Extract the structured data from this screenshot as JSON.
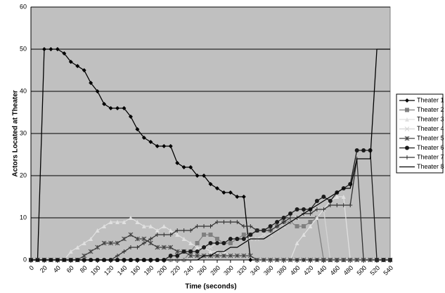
{
  "chart_data": {
    "type": "line",
    "xlabel": "Time (seconds)",
    "ylabel": "Actors Located at Theater",
    "x": [
      0,
      10,
      20,
      30,
      40,
      50,
      60,
      70,
      80,
      90,
      100,
      110,
      120,
      130,
      140,
      150,
      160,
      170,
      180,
      190,
      200,
      210,
      220,
      230,
      240,
      250,
      260,
      270,
      280,
      290,
      300,
      310,
      320,
      330,
      340,
      350,
      360,
      370,
      380,
      390,
      400,
      410,
      420,
      430,
      440,
      450,
      460,
      470,
      480,
      490,
      500,
      510,
      520,
      530,
      540
    ],
    "xlim": [
      0,
      540
    ],
    "xticks": [
      0,
      20,
      40,
      60,
      80,
      100,
      120,
      140,
      160,
      180,
      200,
      220,
      240,
      260,
      280,
      300,
      320,
      340,
      360,
      380,
      400,
      420,
      440,
      460,
      480,
      500,
      520,
      540
    ],
    "ylim": [
      0,
      60
    ],
    "yticks": [
      0,
      10,
      20,
      30,
      40,
      50,
      60
    ],
    "grid": true,
    "legend": "right",
    "series": [
      {
        "name": "Theater 1",
        "color": "#000000",
        "marker": "diamond",
        "values": [
          0,
          0,
          50,
          50,
          50,
          49,
          47,
          46,
          45,
          42,
          40,
          37,
          36,
          36,
          36,
          34,
          31,
          29,
          28,
          27,
          27,
          27,
          23,
          22,
          22,
          20,
          20,
          18,
          17,
          16,
          16,
          15,
          15,
          0,
          0,
          0,
          0,
          0,
          0,
          0,
          0,
          0,
          0,
          0,
          0,
          0,
          0,
          0,
          0,
          0,
          0,
          0,
          0,
          0,
          0
        ]
      },
      {
        "name": "Theater 2",
        "color": "#808080",
        "marker": "square",
        "values": [
          0,
          0,
          0,
          0,
          0,
          0,
          0,
          0,
          0,
          0,
          0,
          0,
          0,
          0,
          0,
          0,
          0,
          0,
          0,
          0,
          0,
          0,
          0,
          0,
          2,
          4,
          6,
          6,
          5,
          4,
          4,
          5,
          6,
          6,
          7,
          7,
          7,
          8,
          9,
          9,
          8,
          8,
          9,
          10,
          0,
          0,
          0,
          0,
          0,
          0,
          0,
          0,
          0,
          0,
          0
        ]
      },
      {
        "name": "Theater 3",
        "color": "#e0e0e0",
        "marker": "triangle",
        "values": [
          0,
          0,
          0,
          0,
          0,
          0,
          2,
          3,
          4,
          5,
          7,
          8,
          9,
          9,
          9,
          10,
          9,
          8,
          8,
          7,
          8,
          7,
          6,
          5,
          4,
          3,
          3,
          2,
          2,
          2,
          1,
          1,
          1,
          1,
          0,
          0,
          0,
          0,
          0,
          0,
          4,
          6,
          8,
          10,
          12,
          14,
          15,
          15,
          0,
          0,
          0,
          0,
          0,
          0,
          0
        ]
      },
      {
        "name": "Theater 4",
        "color": "#d4d4d4",
        "marker": "x",
        "values": [
          0,
          0,
          0,
          0,
          0,
          0,
          0,
          0,
          0,
          0,
          0,
          0,
          0,
          0,
          0,
          0,
          0,
          0,
          0,
          0,
          0,
          0,
          0,
          0,
          0,
          2,
          3,
          3,
          4,
          4,
          5,
          5,
          5,
          5,
          5,
          6,
          6,
          7,
          8,
          9,
          10,
          11,
          12,
          12,
          12,
          0,
          0,
          0,
          0,
          0,
          0,
          0,
          0,
          0,
          0
        ]
      },
      {
        "name": "Theater 5",
        "color": "#404040",
        "marker": "asterisk",
        "values": [
          0,
          0,
          0,
          0,
          0,
          0,
          0,
          0,
          1,
          2,
          3,
          4,
          4,
          4,
          5,
          6,
          5,
          5,
          4,
          3,
          3,
          3,
          2,
          2,
          1,
          1,
          1,
          1,
          1,
          1,
          1,
          1,
          1,
          1,
          0,
          0,
          0,
          0,
          0,
          0,
          0,
          0,
          0,
          0,
          0,
          0,
          0,
          0,
          0,
          0,
          0,
          0,
          0,
          0,
          0
        ]
      },
      {
        "name": "Theater 6",
        "color": "#1a1a1a",
        "marker": "circle",
        "values": [
          0,
          0,
          0,
          0,
          0,
          0,
          0,
          0,
          0,
          0,
          0,
          0,
          0,
          0,
          0,
          0,
          0,
          0,
          0,
          0,
          0,
          1,
          1,
          2,
          2,
          2,
          3,
          4,
          4,
          4,
          5,
          5,
          5,
          6,
          7,
          7,
          8,
          9,
          10,
          11,
          12,
          12,
          12,
          14,
          15,
          14,
          16,
          17,
          18,
          26,
          26,
          26,
          0,
          0,
          0
        ]
      },
      {
        "name": "Theater 7",
        "color": "#303030",
        "marker": "plus",
        "values": [
          0,
          0,
          0,
          0,
          0,
          0,
          0,
          0,
          0,
          0,
          0,
          0,
          0,
          1,
          2,
          3,
          3,
          4,
          5,
          6,
          6,
          6,
          7,
          7,
          7,
          8,
          8,
          8,
          9,
          9,
          9,
          9,
          8,
          8,
          7,
          7,
          7,
          8,
          9,
          10,
          10,
          11,
          11,
          12,
          12,
          13,
          13,
          13,
          13,
          24,
          0,
          0,
          0,
          0,
          0
        ]
      },
      {
        "name": "Theater 8",
        "color": "#000000",
        "marker": "none",
        "values": [
          0,
          0,
          0,
          0,
          0,
          0,
          0,
          0,
          0,
          0,
          0,
          0,
          0,
          0,
          0,
          0,
          0,
          0,
          0,
          0,
          0,
          0,
          0,
          0,
          0,
          0,
          1,
          1,
          2,
          2,
          3,
          3,
          4,
          5,
          5,
          5,
          6,
          7,
          8,
          9,
          10,
          11,
          12,
          13,
          14,
          15,
          16,
          17,
          17,
          24,
          24,
          24,
          50,
          50,
          50
        ]
      }
    ]
  }
}
